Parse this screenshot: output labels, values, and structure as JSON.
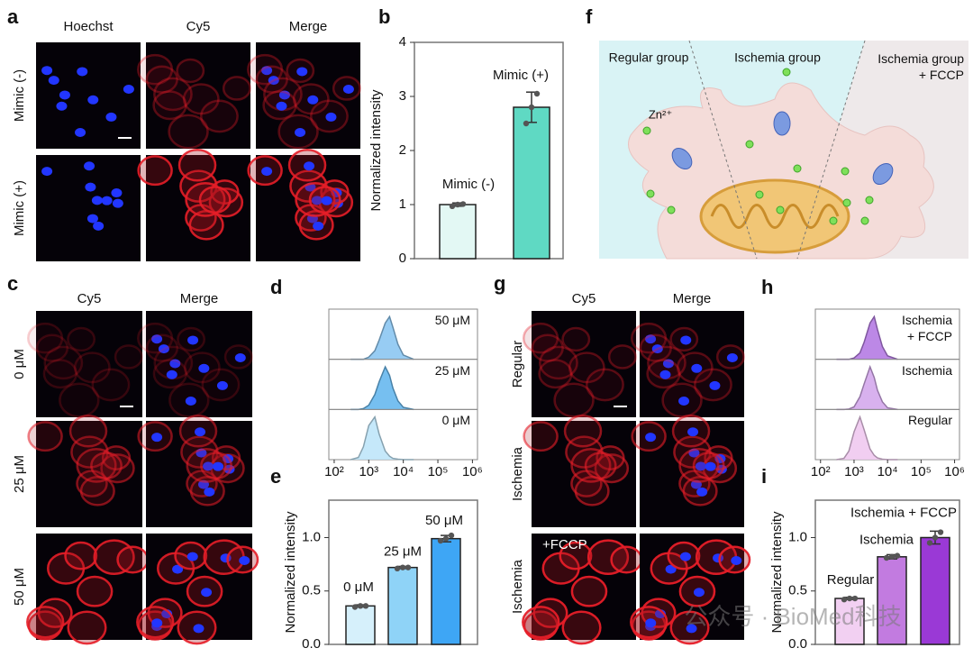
{
  "panel_labels": [
    "a",
    "b",
    "c",
    "d",
    "e",
    "f",
    "g",
    "h",
    "i"
  ],
  "panel_a": {
    "columns": [
      "Hoechst",
      "Cy5",
      "Merge"
    ],
    "rows": [
      "Mimic (-)",
      "Mimic (+)"
    ]
  },
  "panel_c": {
    "columns": [
      "Cy5",
      "Merge"
    ],
    "rows": [
      "0 μM",
      "25 μM",
      "50 μM"
    ]
  },
  "panel_f": {
    "groups": [
      "Regular group",
      "Ischemia group",
      "Ischemia group\n+ FCCP"
    ],
    "ion": "Zn²⁺"
  },
  "panel_g": {
    "columns": [
      "Cy5",
      "Merge"
    ],
    "rows": [
      "Regular",
      "Ischemia",
      "Ischemia"
    ],
    "annotation": "+FCCP"
  },
  "watermark": "公众号 · BioMed科技",
  "chart_data": [
    {
      "type": "bar",
      "ylabel": "Normalized intensity",
      "categories": [
        "Mimic (-)",
        "Mimic (+)"
      ],
      "values": [
        1.0,
        2.8
      ],
      "errors": [
        0.03,
        0.28
      ],
      "points": [
        [
          0.97,
          1.0,
          1.01
        ],
        [
          2.5,
          2.8,
          3.05
        ]
      ],
      "colors": [
        "#e3f8f4",
        "#5fd9c3"
      ],
      "ylim": [
        0,
        4
      ],
      "yticks": [
        0,
        1,
        2,
        3,
        4
      ]
    },
    {
      "type": "ridgeline",
      "log_x": true,
      "x": [
        300,
        500,
        700,
        1000,
        1500,
        2000,
        3000,
        4000,
        5000,
        7000,
        10000,
        20000
      ],
      "series": [
        {
          "name": "50 μM",
          "color": "#8cc6f2",
          "values": [
            0,
            0,
            0,
            0.05,
            0.2,
            0.45,
            0.85,
            1.0,
            0.75,
            0.35,
            0.1,
            0
          ]
        },
        {
          "name": "25 μM",
          "color": "#67b8ee",
          "values": [
            0,
            0,
            0.02,
            0.1,
            0.35,
            0.65,
            1.0,
            0.8,
            0.5,
            0.2,
            0.05,
            0
          ]
        },
        {
          "name": "0 μM",
          "color": "#bfe6fa",
          "values": [
            0,
            0.05,
            0.3,
            0.8,
            1.0,
            0.6,
            0.2,
            0.08,
            0.03,
            0.01,
            0,
            0
          ]
        }
      ],
      "xlim": [
        70,
        1400000
      ],
      "xticks": [
        {
          "value": 100,
          "label": "10²"
        },
        {
          "value": 1000,
          "label": "10³"
        },
        {
          "value": 10000,
          "label": "10⁴"
        },
        {
          "value": 100000,
          "label": "10⁵"
        },
        {
          "value": 1000000,
          "label": "10⁶"
        }
      ]
    },
    {
      "type": "bar",
      "ylabel": "Normalized intensity",
      "categories": [
        "0 μM",
        "25 μM",
        "50 μM"
      ],
      "values": [
        0.36,
        0.72,
        0.99
      ],
      "errors": [
        0.01,
        0.01,
        0.03
      ],
      "points": [
        [
          0.35,
          0.36,
          0.36
        ],
        [
          0.71,
          0.72,
          0.72
        ],
        [
          0.97,
          0.99,
          1.02
        ]
      ],
      "colors": [
        "#d6f0fb",
        "#8fd3f7",
        "#3ea6f5"
      ],
      "ylim": [
        0,
        1.35
      ],
      "yticks": [
        {
          "value": 0,
          "label": "0.0"
        },
        0.5,
        {
          "value": 1,
          "label": "1.0"
        }
      ]
    },
    {
      "type": "ridgeline",
      "log_x": true,
      "x": [
        300,
        500,
        700,
        1000,
        1500,
        2000,
        3000,
        4000,
        5000,
        7000,
        10000,
        20000
      ],
      "series": [
        {
          "name": "Ischemia\n+ FCCP",
          "color": "#b57be3",
          "values": [
            0,
            0,
            0,
            0.03,
            0.15,
            0.4,
            0.85,
            1.0,
            0.7,
            0.3,
            0.08,
            0
          ]
        },
        {
          "name": "Ischemia",
          "color": "#d4a8ec",
          "values": [
            0,
            0,
            0.01,
            0.06,
            0.3,
            0.6,
            1.0,
            0.75,
            0.45,
            0.18,
            0.04,
            0
          ]
        },
        {
          "name": "Regular",
          "color": "#f0c9f0",
          "values": [
            0,
            0.03,
            0.2,
            0.65,
            1.0,
            0.7,
            0.25,
            0.1,
            0.04,
            0.01,
            0,
            0
          ]
        }
      ],
      "xlim": [
        70,
        1400000
      ],
      "xticks": [
        {
          "value": 100,
          "label": "10²"
        },
        {
          "value": 1000,
          "label": "10³"
        },
        {
          "value": 10000,
          "label": "10⁴"
        },
        {
          "value": 100000,
          "label": "10⁵"
        },
        {
          "value": 1000000,
          "label": "10⁶"
        }
      ]
    },
    {
      "type": "bar",
      "ylabel": "Normalized intensity",
      "categories": [
        "Regular",
        "Ischemia",
        "Ischemia + FCCP"
      ],
      "values": [
        0.43,
        0.82,
        1.0
      ],
      "errors": [
        0.01,
        0.02,
        0.06
      ],
      "points": [
        [
          0.42,
          0.43,
          0.43
        ],
        [
          0.81,
          0.82,
          0.83
        ],
        [
          0.95,
          1.0,
          1.05
        ]
      ],
      "colors": [
        "#f2d0f2",
        "#c27be0",
        "#9a39d6"
      ],
      "ylim": [
        0,
        1.35
      ],
      "yticks": [
        {
          "value": 0,
          "label": "0.0"
        },
        0.5,
        {
          "value": 1,
          "label": "1.0"
        }
      ]
    }
  ]
}
